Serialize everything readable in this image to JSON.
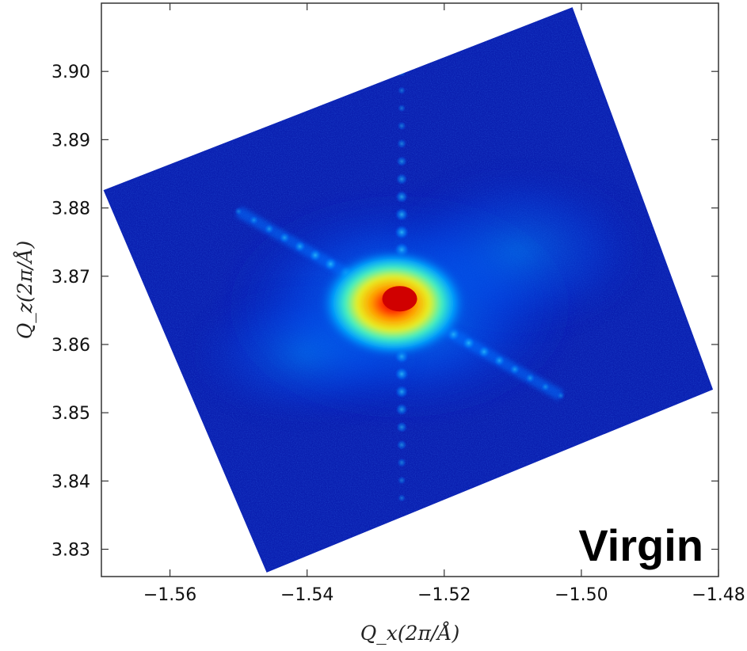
{
  "chart_data": {
    "type": "heatmap",
    "title": "",
    "xlabel": "Q_x(2π/Å)",
    "ylabel": "Q_z(2π/Å)",
    "xlim": [
      -1.57,
      -1.48
    ],
    "ylim": [
      3.826,
      3.91
    ],
    "x_ticks": [
      -1.56,
      -1.54,
      -1.52,
      -1.5,
      -1.48
    ],
    "x_tick_labels": [
      "−1.56",
      "−1.54",
      "−1.52",
      "−1.50",
      "−1.48"
    ],
    "y_ticks": [
      3.83,
      3.84,
      3.85,
      3.86,
      3.87,
      3.88,
      3.89,
      3.9
    ],
    "y_tick_labels": [
      "3.83",
      "3.84",
      "3.85",
      "3.86",
      "3.87",
      "3.88",
      "3.89",
      "3.90"
    ],
    "colormap": "jet",
    "grid": false,
    "annotation": "Virgin",
    "data_region_corners": [
      [
        -1.5697,
        3.8826
      ],
      [
        -1.5013,
        3.9094
      ],
      [
        -1.4808,
        3.8534
      ],
      [
        -1.5459,
        3.8266
      ]
    ],
    "peak": {
      "x": -1.5265,
      "y": 3.8667
    },
    "streaks": [
      {
        "name": "diagonal",
        "from": [
          -1.55,
          3.8795
        ],
        "to": [
          -1.503,
          3.8525
        ]
      },
      {
        "name": "vertical",
        "from": [
          -1.5262,
          3.8375
        ],
        "to": [
          -1.5262,
          3.905
        ]
      }
    ]
  }
}
